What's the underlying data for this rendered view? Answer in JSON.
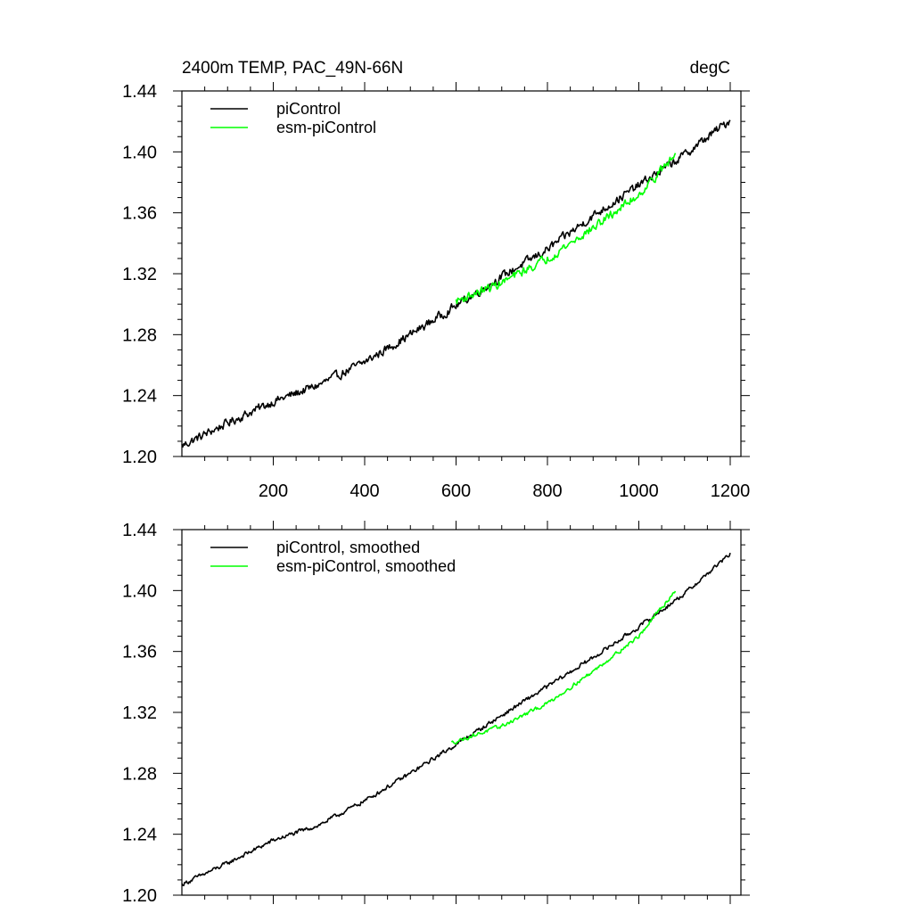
{
  "chart_data": [
    {
      "type": "line",
      "panel": "top",
      "title_left": "2400m TEMP, PAC_49N-66N",
      "title_right": "degC",
      "xlabel": "",
      "ylabel": "",
      "xlim": [
        0,
        1200
      ],
      "ylim": [
        1.2,
        1.44
      ],
      "x_ticks": [
        200,
        400,
        600,
        800,
        1000,
        1200
      ],
      "x_tick_labels": [
        "200",
        "400",
        "600",
        "800",
        "1000",
        "1200"
      ],
      "y_ticks": [
        1.2,
        1.24,
        1.28,
        1.32,
        1.36,
        1.4,
        1.44
      ],
      "y_tick_labels": [
        "1.20",
        "1.24",
        "1.28",
        "1.32",
        "1.36",
        "1.40",
        "1.44"
      ],
      "grid": false,
      "legend_position": "top-left",
      "series": [
        {
          "name": "piControl",
          "color": "#000000",
          "x_start": 0,
          "x_end": 1200,
          "noise": 0.0045,
          "x": [
            0,
            100,
            200,
            300,
            400,
            500,
            600,
            700,
            800,
            900,
            1000,
            1100,
            1200
          ],
          "values": [
            1.207,
            1.222,
            1.236,
            1.247,
            1.262,
            1.28,
            1.299,
            1.318,
            1.336,
            1.358,
            1.378,
            1.398,
            1.421
          ]
        },
        {
          "name": "esm-piControl",
          "color": "#00ff00",
          "x_start": 600,
          "x_end": 1080,
          "noise": 0.0045,
          "x": [
            600,
            700,
            800,
            900,
            1000,
            1080
          ],
          "values": [
            1.302,
            1.314,
            1.33,
            1.35,
            1.372,
            1.398
          ]
        }
      ]
    },
    {
      "type": "line",
      "panel": "bottom",
      "xlabel": "",
      "ylabel": "",
      "xlim": [
        0,
        1200
      ],
      "ylim": [
        1.2,
        1.44
      ],
      "x_ticks": [
        200,
        400,
        600,
        800,
        1000,
        1200
      ],
      "y_ticks": [
        1.2,
        1.24,
        1.28,
        1.32,
        1.36,
        1.4,
        1.44
      ],
      "y_tick_labels": [
        "1.20",
        "1.24",
        "1.28",
        "1.32",
        "1.36",
        "1.40",
        "1.44"
      ],
      "grid": false,
      "legend_position": "top-left",
      "series": [
        {
          "name": "piControl, smoothed",
          "color": "#000000",
          "x_start": 0,
          "x_end": 1200,
          "noise": 0.0022,
          "x": [
            0,
            100,
            200,
            300,
            400,
            500,
            600,
            700,
            800,
            900,
            1000,
            1100,
            1200
          ],
          "values": [
            1.207,
            1.221,
            1.236,
            1.246,
            1.262,
            1.28,
            1.299,
            1.318,
            1.337,
            1.356,
            1.376,
            1.398,
            1.424
          ]
        },
        {
          "name": "esm-piControl, smoothed",
          "color": "#00ff00",
          "x_start": 590,
          "x_end": 1080,
          "noise": 0.002,
          "x": [
            590,
            700,
            800,
            900,
            1000,
            1080
          ],
          "values": [
            1.3,
            1.311,
            1.326,
            1.347,
            1.37,
            1.4
          ]
        }
      ]
    }
  ]
}
